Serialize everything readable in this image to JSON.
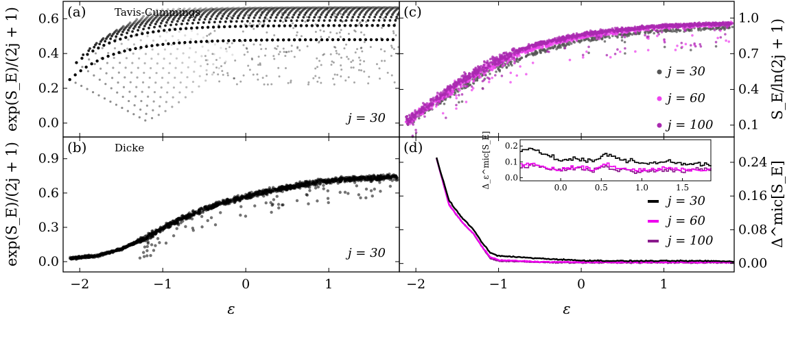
{
  "figure": {
    "xlabel": "ε",
    "ylabel_left_top": "exp(S_E)/(2j + 1)",
    "ylabel_left_bottom": "exp(S_E)/(2j + 1)",
    "ylabel_right_top": "S_E/ln(2j + 1)",
    "ylabel_right_bottom": "Δ^mic[S_E]"
  },
  "chart_data": [
    {
      "panel": "(a)",
      "type": "scatter",
      "title": "Tavis-Cummings",
      "annotation": "j = 30",
      "xlabel": "",
      "ylabel": "exp(S_E)/(2j + 1)",
      "xlim": [
        -2.2,
        1.85
      ],
      "ylim": [
        -0.08,
        0.7
      ],
      "yticks": [
        0.0,
        0.2,
        0.4,
        0.6
      ],
      "ytick_labels": [
        "0.0",
        "0.2",
        "0.4",
        "0.6"
      ],
      "xticks": [
        -2,
        -1,
        0,
        1
      ],
      "series": [
        {
          "name": "j = 30",
          "color": "#000000",
          "description_of_shape": "fan of arcs starting at y≈0.25,0.33,0.40,0.46,0.51,0.55,0.58,0.61 near ε≈-2.1..-1.3 rising to plateaus ≈0.45–0.66 at ε≈1.8; lower branches descend to ≈0.02 at ε≈-1"
        }
      ]
    },
    {
      "panel": "(b)",
      "type": "scatter",
      "title": "Dicke",
      "annotation": "j = 30",
      "xlabel": "ε",
      "ylabel": "exp(S_E)/(2j + 1)",
      "xlim": [
        -2.2,
        1.85
      ],
      "ylim": [
        -0.09,
        1.09
      ],
      "yticks": [
        0.0,
        0.3,
        0.6,
        0.9
      ],
      "ytick_labels": [
        "0.0",
        "0.3",
        "0.6",
        "0.9"
      ],
      "xticks": [
        -2,
        -1,
        0,
        1
      ],
      "xtick_labels": [
        "−2",
        "−1",
        "0",
        "1"
      ],
      "series": [
        {
          "name": "j = 30",
          "color": "#000000",
          "x": [
            -2.1,
            -1.8,
            -1.5,
            -1.2,
            -0.9,
            -0.6,
            -0.3,
            0.0,
            0.3,
            0.6,
            0.9,
            1.2,
            1.5,
            1.8
          ],
          "y": [
            0.03,
            0.05,
            0.11,
            0.21,
            0.33,
            0.43,
            0.51,
            0.57,
            0.62,
            0.66,
            0.7,
            0.72,
            0.73,
            0.74
          ]
        }
      ]
    },
    {
      "panel": "(c)",
      "type": "scatter",
      "xlabel": "",
      "ylabel": "S_E/ln(2j + 1)",
      "xlim": [
        -2.2,
        1.85
      ],
      "ylim": [
        0.0,
        1.14
      ],
      "yticks": [
        0.1,
        0.4,
        0.7,
        1.0
      ],
      "ytick_labels": [
        "0.1",
        "0.4",
        "0.7",
        "1.0"
      ],
      "xticks": [
        -2,
        -1,
        0,
        1
      ],
      "legend": "right",
      "series": [
        {
          "name": "j = 30",
          "label": "j = 30",
          "color": "#555555",
          "x": [
            -2.1,
            -1.8,
            -1.5,
            -1.2,
            -0.9,
            -0.6,
            -0.3,
            0.0,
            0.3,
            0.6,
            0.9,
            1.2,
            1.5,
            1.8
          ],
          "y": [
            0.14,
            0.25,
            0.4,
            0.52,
            0.62,
            0.7,
            0.76,
            0.81,
            0.84,
            0.87,
            0.89,
            0.9,
            0.91,
            0.92
          ]
        },
        {
          "name": "j = 60",
          "label": "j = 60",
          "color": "#ee44ee",
          "x": [
            -2.1,
            -1.8,
            -1.5,
            -1.2,
            -0.9,
            -0.6,
            -0.3,
            0.0,
            0.3,
            0.6,
            0.9,
            1.2,
            1.5,
            1.8
          ],
          "y": [
            0.14,
            0.27,
            0.43,
            0.55,
            0.66,
            0.74,
            0.8,
            0.84,
            0.87,
            0.9,
            0.92,
            0.93,
            0.94,
            0.95
          ]
        },
        {
          "name": "j = 100",
          "label": "j = 100",
          "color": "#aa2ab0",
          "x": [
            -2.1,
            -1.8,
            -1.5,
            -1.2,
            -0.9,
            -0.6,
            -0.3,
            0.0,
            0.3,
            0.6,
            0.9,
            1.2,
            1.5,
            1.8
          ],
          "y": [
            0.14,
            0.29,
            0.46,
            0.58,
            0.69,
            0.77,
            0.82,
            0.86,
            0.89,
            0.91,
            0.93,
            0.94,
            0.95,
            0.95
          ]
        }
      ]
    },
    {
      "panel": "(d)",
      "type": "line",
      "xlabel": "ε",
      "ylabel": "Δ^mic[S_E]",
      "xlim": [
        -2.2,
        1.85
      ],
      "ylim": [
        -0.02,
        0.3
      ],
      "yticks": [
        0.0,
        0.08,
        0.16,
        0.24
      ],
      "ytick_labels": [
        "0.00",
        "0.08",
        "0.16",
        "0.24"
      ],
      "xticks": [
        -2,
        -1,
        0,
        1
      ],
      "xtick_labels": [
        "−2",
        "−1",
        "0",
        "1"
      ],
      "legend": "right",
      "series": [
        {
          "name": "j = 30",
          "label": "j = 30",
          "color": "#000000",
          "x": [
            -1.75,
            -1.6,
            -1.45,
            -1.3,
            -1.2,
            -1.1,
            -1.0,
            -0.5,
            0.0,
            0.5,
            1.0,
            1.5,
            1.85
          ],
          "y": [
            0.25,
            0.15,
            0.11,
            0.08,
            0.05,
            0.025,
            0.018,
            0.012,
            0.007,
            0.006,
            0.006,
            0.006,
            0.005
          ]
        },
        {
          "name": "j = 60",
          "label": "j = 60",
          "color": "#ee00ee",
          "x": [
            -1.75,
            -1.6,
            -1.45,
            -1.3,
            -1.2,
            -1.1,
            -1.0,
            -0.5,
            0.0,
            0.5,
            1.0,
            1.5,
            1.85
          ],
          "y": [
            0.25,
            0.14,
            0.1,
            0.07,
            0.04,
            0.015,
            0.008,
            0.004,
            0.003,
            0.003,
            0.003,
            0.003,
            0.003
          ]
        },
        {
          "name": "j = 100",
          "label": "j = 100",
          "color": "#8a1a8c",
          "x": [
            -1.75,
            -1.6,
            -1.45,
            -1.3,
            -1.2,
            -1.1,
            -1.0,
            -0.5,
            0.0,
            0.5,
            1.0,
            1.5,
            1.85
          ],
          "y": [
            0.25,
            0.14,
            0.1,
            0.07,
            0.04,
            0.012,
            0.006,
            0.003,
            0.002,
            0.002,
            0.002,
            0.002,
            0.002
          ]
        }
      ],
      "inset": {
        "type": "line",
        "ylabel": "Δ_ε^mic[S_E]",
        "xlim": [
          -0.5,
          1.85
        ],
        "ylim": [
          -0.02,
          0.24
        ],
        "xticks": [
          0.0,
          0.5,
          1.0,
          1.5
        ],
        "xtick_labels": [
          "0.0",
          "0.5",
          "1.0",
          "1.5"
        ],
        "yticks": [
          0.0,
          0.1,
          0.2
        ],
        "ytick_labels": [
          "0.0",
          "0.1",
          "0.2"
        ],
        "series": [
          {
            "name": "j = 30",
            "color": "#000000",
            "x": [
              -0.5,
              -0.35,
              -0.2,
              0.0,
              0.2,
              0.4,
              0.55,
              0.7,
              0.9,
              1.1,
              1.3,
              1.5,
              1.7,
              1.85
            ],
            "y": [
              0.17,
              0.19,
              0.14,
              0.11,
              0.12,
              0.1,
              0.15,
              0.12,
              0.1,
              0.09,
              0.11,
              0.08,
              0.09,
              0.07
            ]
          },
          {
            "name": "j = 60",
            "color": "#ee00ee",
            "x": [
              -0.5,
              -0.35,
              -0.2,
              0.0,
              0.2,
              0.4,
              0.55,
              0.7,
              0.9,
              1.1,
              1.3,
              1.5,
              1.7,
              1.85
            ],
            "y": [
              0.08,
              0.09,
              0.06,
              0.05,
              0.07,
              0.05,
              0.09,
              0.06,
              0.05,
              0.05,
              0.06,
              0.05,
              0.05,
              0.06
            ]
          },
          {
            "name": "j = 100",
            "color": "#8a1a8c",
            "x": [
              -0.5,
              -0.35,
              -0.2,
              0.0,
              0.2,
              0.4,
              0.55,
              0.7,
              0.9,
              1.1,
              1.3,
              1.5,
              1.7,
              1.85
            ],
            "y": [
              0.07,
              0.08,
              0.06,
              0.05,
              0.06,
              0.05,
              0.07,
              0.05,
              0.04,
              0.05,
              0.05,
              0.04,
              0.05,
              0.05
            ]
          }
        ]
      }
    }
  ]
}
